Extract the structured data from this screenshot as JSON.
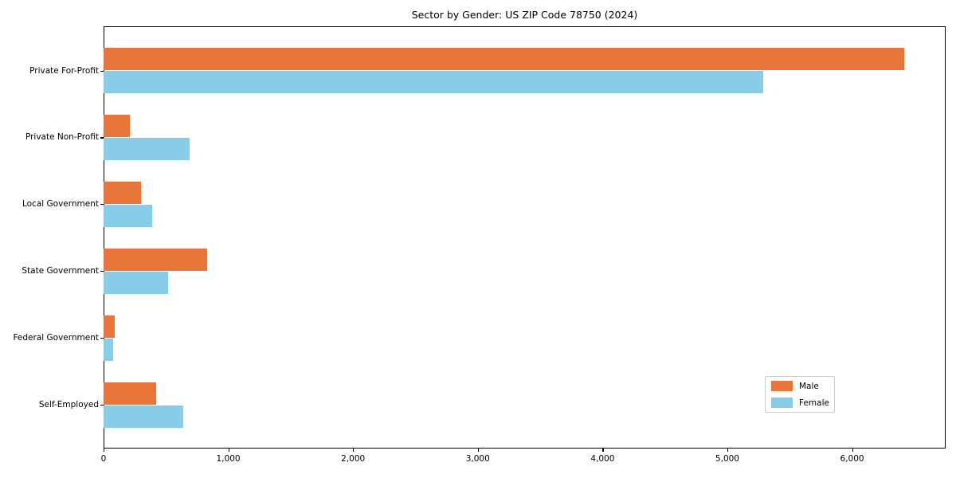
{
  "title": "Sector by Gender: US ZIP Code 78750 (2024)",
  "chart_data": {
    "type": "bar",
    "orientation": "horizontal",
    "title": "Sector by Gender: US ZIP Code 78750 (2024)",
    "categories": [
      "Private For-Profit",
      "Private Non-Profit",
      "Local Government",
      "State Government",
      "Federal Government",
      "Self-Employed"
    ],
    "series": [
      {
        "name": "Male",
        "color": "#e8763b",
        "values": [
          6420,
          210,
          300,
          830,
          90,
          420
        ]
      },
      {
        "name": "Female",
        "color": "#89cce8",
        "values": [
          5290,
          690,
          390,
          520,
          75,
          640
        ]
      }
    ],
    "xlim": [
      0,
      6750
    ],
    "xticks": [
      0,
      1000,
      2000,
      3000,
      4000,
      5000,
      6000
    ],
    "xtick_labels": [
      "0",
      "1,000",
      "2,000",
      "3,000",
      "4,000",
      "5,000",
      "6,000"
    ],
    "xlabel": "",
    "ylabel": "",
    "grid": false,
    "legend_position": "lower right"
  },
  "legend": {
    "items": [
      {
        "label": "Male",
        "color": "#e8763b"
      },
      {
        "label": "Female",
        "color": "#89cce8"
      }
    ]
  }
}
